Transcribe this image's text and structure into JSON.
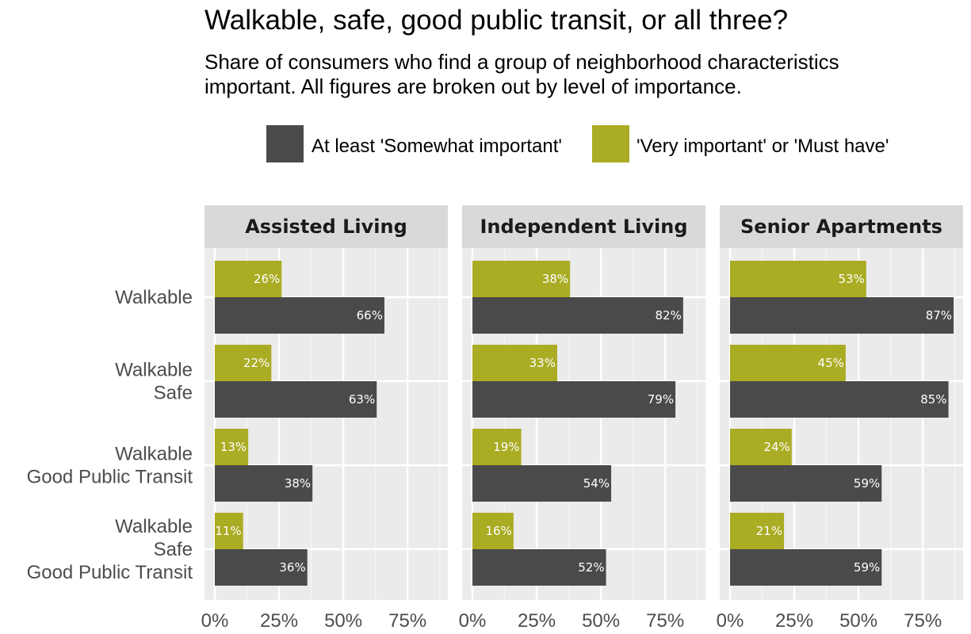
{
  "chart_data": {
    "type": "bar",
    "orientation": "horizontal",
    "title": "Walkable, safe, good public transit, or all three?",
    "subtitle_lines": [
      "Share of consumers who find a group of neighborhood characteristics",
      "important. All figures are broken out by level of importance."
    ],
    "legend": {
      "placement": "top",
      "items": [
        {
          "label": "At least 'Somewhat important'",
          "color": "#4a4a4a"
        },
        {
          "label": "'Very important' or 'Must have'",
          "color": "#aaac24"
        }
      ]
    },
    "categories": [
      {
        "lines": [
          "Walkable"
        ]
      },
      {
        "lines": [
          "Walkable",
          "Safe"
        ]
      },
      {
        "lines": [
          "Walkable",
          "Good Public Transit"
        ]
      },
      {
        "lines": [
          "Walkable",
          "Safe",
          "Good Public Transit"
        ]
      }
    ],
    "x_ticks": [
      "0%",
      "25%",
      "50%",
      "75%"
    ],
    "xlim": [
      0,
      92
    ],
    "grid": true,
    "panels": [
      {
        "title": "Assisted Living",
        "series": [
          {
            "name": "At least 'Somewhat important'",
            "values": [
              66,
              63,
              38,
              36
            ],
            "labels": [
              "66%",
              "63%",
              "38%",
              "36%"
            ]
          },
          {
            "name": "'Very important' or 'Must have'",
            "values": [
              26,
              22,
              13,
              11
            ],
            "labels": [
              "26%",
              "22%",
              "13%",
              "11%"
            ]
          }
        ]
      },
      {
        "title": "Independent Living",
        "series": [
          {
            "name": "At least 'Somewhat important'",
            "values": [
              82,
              79,
              54,
              52
            ],
            "labels": [
              "82%",
              "79%",
              "54%",
              "52%"
            ]
          },
          {
            "name": "'Very important' or 'Must have'",
            "values": [
              38,
              33,
              19,
              16
            ],
            "labels": [
              "38%",
              "33%",
              "19%",
              "16%"
            ]
          }
        ]
      },
      {
        "title": "Senior Apartments",
        "series": [
          {
            "name": "At least 'Somewhat important'",
            "values": [
              87,
              85,
              59,
              59
            ],
            "labels": [
              "87%",
              "85%",
              "59%",
              "59%"
            ]
          },
          {
            "name": "'Very important' or 'Must have'",
            "values": [
              53,
              45,
              24,
              21
            ],
            "labels": [
              "53%",
              "45%",
              "24%",
              "21%"
            ]
          }
        ]
      }
    ]
  }
}
